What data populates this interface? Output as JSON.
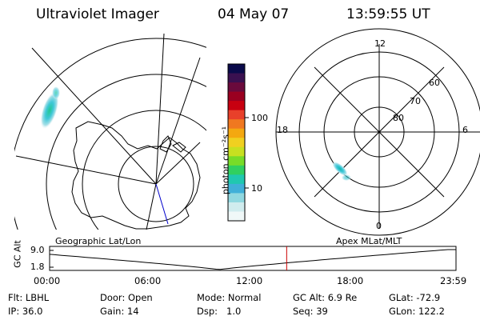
{
  "header": {
    "instrument": "Ultraviolet Imager",
    "date": "04 May 07",
    "time": "13:59:55 UT"
  },
  "colorbar": {
    "unit_label": "photon cm⁻²s⁻¹",
    "ticks": [
      "100",
      "10"
    ],
    "colors": [
      "#0a0a4a",
      "#3a1050",
      "#6a0a3c",
      "#9a0020",
      "#c80010",
      "#e8402a",
      "#f07820",
      "#f4a810",
      "#f0d020",
      "#c8e020",
      "#78dc28",
      "#30d060",
      "#20c8b0",
      "#40b0d8",
      "#90d8e0",
      "#d0ecee",
      "#f0f8f8"
    ]
  },
  "geographic_map": {
    "label": "Geographic Lat/Lon"
  },
  "polar_plot": {
    "label": "Apex MLat/MLT",
    "mlt_labels": {
      "top": "12",
      "bottom": "0",
      "left": "18",
      "right": "6"
    },
    "lat_labels": [
      "60",
      "70",
      "80"
    ]
  },
  "timeline": {
    "axis_label": "GC Alt",
    "y_ticks": [
      "9.0",
      "1.8"
    ],
    "x_ticks": [
      "00:00",
      "06:00",
      "12:00",
      "18:00",
      "23:59"
    ],
    "marker_time_hours": 14.0,
    "marker_color": "#cc0000"
  },
  "info": {
    "row1": [
      {
        "label": "Flt:",
        "value": "LBHL"
      },
      {
        "label": "Door:",
        "value": "Open"
      },
      {
        "label": "Mode:",
        "value": "Normal"
      },
      {
        "label": "GC Alt:",
        "value": "6.9 Re"
      },
      {
        "label": "GLat:",
        "value": "-72.9"
      }
    ],
    "row2": [
      {
        "label": "IP:",
        "value": "36.0"
      },
      {
        "label": "Gain:",
        "value": "14"
      },
      {
        "label": "Dsp:",
        "value": "1.0"
      },
      {
        "label": "Seq:",
        "value": "39"
      },
      {
        "label": "GLon:",
        "value": "122.2"
      }
    ]
  }
}
